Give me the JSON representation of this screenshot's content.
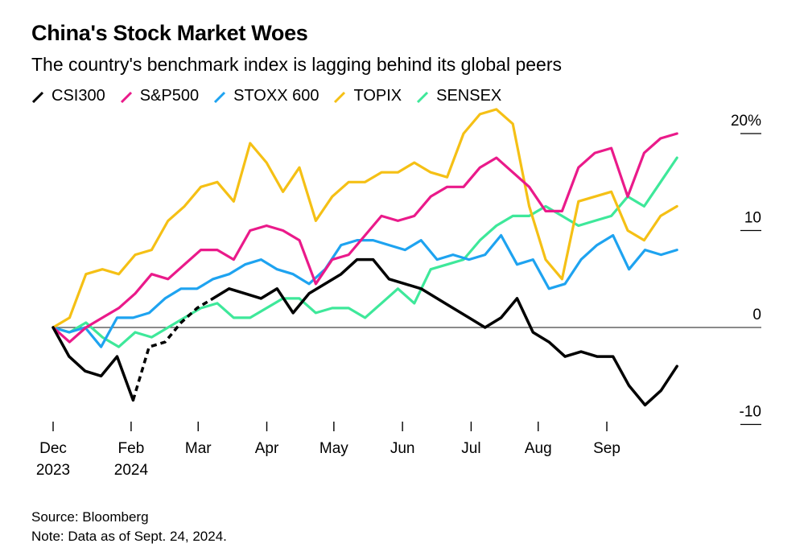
{
  "chart_data": {
    "type": "line",
    "title": "China's Stock Market Woes",
    "subtitle": "The country's benchmark index is lagging behind its global peers",
    "x_range": [
      0,
      42
    ],
    "ylim": [
      -10,
      20
    ],
    "y_ticks": [
      {
        "value": 20,
        "label": "20%"
      },
      {
        "value": 10,
        "label": "10"
      },
      {
        "value": 0,
        "label": "0"
      },
      {
        "value": -10,
        "label": "-10"
      }
    ],
    "x_ticks": [
      {
        "x": 0,
        "label": "Dec",
        "sub": "2023"
      },
      {
        "x": 5,
        "label": "Feb",
        "sub": "2024"
      },
      {
        "x": 9.3,
        "label": "Mar",
        "sub": ""
      },
      {
        "x": 13.7,
        "label": "Apr",
        "sub": ""
      },
      {
        "x": 18,
        "label": "May",
        "sub": ""
      },
      {
        "x": 22.4,
        "label": "Jun",
        "sub": ""
      },
      {
        "x": 26.8,
        "label": "Jul",
        "sub": ""
      },
      {
        "x": 31.1,
        "label": "Aug",
        "sub": ""
      },
      {
        "x": 35.5,
        "label": "Sep",
        "sub": ""
      }
    ],
    "legend_position": "top-left",
    "series": [
      {
        "name": "SENSEX",
        "color": "#3ee89a",
        "values": [
          0,
          -0.5,
          0.5,
          -1,
          -2,
          -0.5,
          -1,
          0,
          1,
          2,
          2.5,
          1,
          1,
          2,
          3,
          3,
          1.5,
          2,
          2,
          1,
          2.5,
          4,
          2.5,
          6,
          6.5,
          7,
          9,
          10.5,
          11.5,
          11.5,
          12.5,
          11.5,
          10.5,
          11,
          11.5,
          13.5,
          12.5,
          15,
          17.5
        ]
      },
      {
        "name": "STOXX 600",
        "color": "#1ea3f0",
        "values": [
          0,
          -0.5,
          0,
          -2,
          1,
          1,
          1.5,
          3,
          4,
          4,
          5,
          5.5,
          6.5,
          7,
          6,
          5.5,
          4.5,
          6,
          8.5,
          9,
          9,
          8.5,
          8,
          9,
          7,
          7.5,
          7,
          7.5,
          9.5,
          6.5,
          7,
          4,
          4.5,
          7,
          8.5,
          9.5,
          6,
          8,
          7.5,
          8
        ]
      },
      {
        "name": "TOPIX",
        "color": "#f5c015",
        "values": [
          0,
          1,
          5.5,
          6,
          5.5,
          7.5,
          8,
          11,
          12.5,
          14.5,
          15,
          13,
          19,
          17,
          14,
          16.5,
          11,
          13.5,
          15,
          15,
          16,
          16,
          17,
          16,
          15.5,
          20,
          22,
          22.5,
          21,
          12.5,
          7,
          5,
          13,
          13.5,
          14,
          10,
          9,
          11.5,
          12.5
        ]
      },
      {
        "name": "S&P500",
        "color": "#ea1a8a",
        "values": [
          0,
          -1.5,
          0,
          1,
          2,
          3.5,
          5.5,
          5,
          6.5,
          8,
          8,
          7,
          10,
          10.5,
          10,
          9,
          4.5,
          7,
          7.5,
          9.5,
          11.5,
          11,
          11.5,
          13.5,
          14.5,
          14.5,
          16.5,
          17.5,
          16,
          14.5,
          12,
          12,
          16.5,
          18,
          18.5,
          13.5,
          18,
          19.5,
          20
        ]
      },
      {
        "name": "CSI300",
        "color": "#000000",
        "values": [
          0,
          -3,
          -4.5,
          -5,
          -3,
          -7.5,
          -2,
          -1.5,
          0.5,
          2,
          3,
          4,
          3.5,
          3,
          4,
          1.5,
          3.5,
          4.5,
          5.5,
          7,
          7,
          5,
          4.5,
          4,
          3,
          2,
          1,
          0,
          1,
          3,
          -0.5,
          -1.5,
          -3,
          -2.5,
          -3,
          -3,
          -6,
          -8,
          -6.5,
          -4
        ],
        "dashed_range": [
          5.8,
          9.6
        ]
      }
    ]
  },
  "legend": [
    {
      "name": "CSI300",
      "color": "#000000"
    },
    {
      "name": "S&P500",
      "color": "#ea1a8a"
    },
    {
      "name": "STOXX 600",
      "color": "#1ea3f0"
    },
    {
      "name": "TOPIX",
      "color": "#f5c015"
    },
    {
      "name": "SENSEX",
      "color": "#3ee89a"
    }
  ],
  "footer": {
    "source": "Source: Bloomberg",
    "note": "Note: Data as of Sept. 24, 2024."
  }
}
